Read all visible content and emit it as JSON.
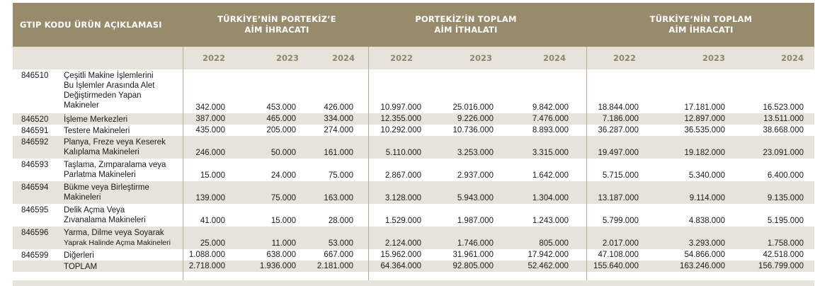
{
  "header": {
    "col1": "GTIP KODU ÜRÜN AÇIKLAMASI",
    "col2_line1": "TÜRKİYE’NİN PORTEKİZ’E",
    "col2_line2": "AİM İHRACATI",
    "col3_line1": "PORTEKİZ’İN  TOPLAM",
    "col3_line2": "AİM İTHALATI",
    "col4_line1": "TÜRKİYE’NİN TOPLAM",
    "col4_line2": "AİM İHRACATI"
  },
  "years": [
    "2022",
    "2023",
    "2024",
    "2022",
    "2023",
    "2024",
    "2022",
    "2023",
    "2024"
  ],
  "rows": [
    {
      "code": "846510",
      "desc": [
        "Çeşitli Makine İşlemlerini",
        "Bu İşlemler Arasında Alet",
        "Değiştirmeden Yapan",
        "Makineler"
      ],
      "values": [
        "342.000",
        "453.000",
        "426.000",
        "10.997.000",
        "25.016.000",
        "9.842.000",
        "18.844.000",
        "17.181.000",
        "16.523.000"
      ]
    },
    {
      "code": "846520",
      "desc": [
        "İşleme Merkezleri"
      ],
      "values": [
        "387.000",
        "465.000",
        "334.000",
        "12.355.000",
        "9.226.000",
        "7.476.000",
        "7.186.000",
        "12.897.000",
        "13.511.000"
      ]
    },
    {
      "code": "846591",
      "desc": [
        "Testere Makineleri"
      ],
      "values": [
        "435.000",
        "205.000",
        "274.000",
        "10.292.000",
        "10.736.000",
        "8.893.000",
        "36.287.000",
        "36.535.000",
        "38.668.000"
      ]
    },
    {
      "code": "846592",
      "desc": [
        "Planya, Freze veya Keserek",
        "Kalıplama Makineleri"
      ],
      "values": [
        "246.000",
        "50.000",
        "161.000",
        "5.110.000",
        "3.253.000",
        "3.315.000",
        "19.497.000",
        "19.182.000",
        "23.091.000"
      ]
    },
    {
      "code": "846593",
      "desc": [
        "Taşlama, Zımparalama veya",
        "Parlatma Makineleri"
      ],
      "values": [
        "15.000",
        "24.000",
        "75.000",
        "2.867.000",
        "2.937.000",
        "1.642.000",
        "5.715.000",
        "5.340.000",
        "6.400.000"
      ]
    },
    {
      "code": "846594",
      "desc": [
        "Bükme veya Birleştirme",
        "Makineleri"
      ],
      "values": [
        "139.000",
        "75.000",
        "163.000",
        "3.128.000",
        "5.943.000",
        "1.304.000",
        "13.187.000",
        "9.114.000",
        "9.135.000"
      ]
    },
    {
      "code": "846595",
      "desc": [
        "Delik Açma Veya",
        "Zıvanalama Makineleri"
      ],
      "values": [
        "41.000",
        "15.000",
        "28.000",
        "1.529.000",
        "1.987.000",
        "1.243.000",
        "5.799.000",
        "4.838.000",
        "5.195.000"
      ]
    },
    {
      "code": "846596",
      "desc": [
        "Yarma, Dilme veya Soyarak",
        "Yaprak Halinde Açma Makineleri"
      ],
      "values": [
        "25.000",
        "11.000",
        "53.000",
        "2.124.000",
        "1.746.000",
        "805.000",
        "2.017.000",
        "3.293.000",
        "1.758.000"
      ]
    },
    {
      "code": "846599",
      "desc": [
        "Diğerleri"
      ],
      "values": [
        "1.088.000",
        "638.000",
        "667.000",
        "15.962.000",
        "31.961.000",
        "17.942.000",
        "47.108.000",
        "54.866.000",
        "42.518.000"
      ]
    },
    {
      "code": "",
      "desc": [
        "TOPLAM"
      ],
      "values": [
        "2.718.000",
        "1.936.000",
        "2.181.000",
        "64.364.000",
        "92.805.000",
        "52.462.000",
        "155.640.000",
        "163.246.000",
        "156.799.000"
      ]
    }
  ],
  "colors": {
    "header_bg": "#978b6c",
    "shade": "#e7e3da",
    "year_text": "#8f8670",
    "divider": "#b5ab93"
  }
}
